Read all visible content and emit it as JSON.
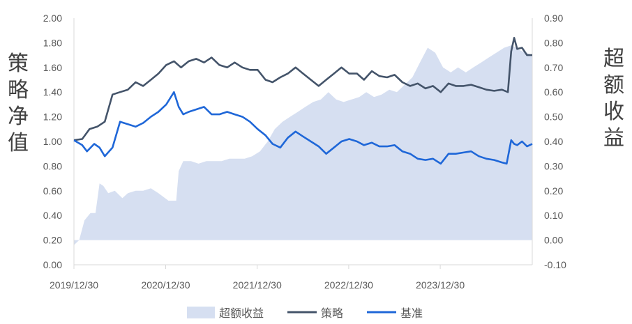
{
  "chart_data": {
    "type": "line",
    "ylabel_left": "策略净值",
    "ylabel_right": "超额收益",
    "y_left": {
      "ticks": [
        "2.00",
        "1.80",
        "1.60",
        "1.40",
        "1.20",
        "1.00",
        "0.80",
        "0.60",
        "0.40",
        "0.20",
        "0.00"
      ],
      "min": 0.0,
      "max": 2.0
    },
    "y_right": {
      "ticks": [
        "0.90",
        "0.80",
        "0.70",
        "0.60",
        "0.50",
        "0.40",
        "0.30",
        "0.20",
        "0.10",
        "0.00",
        "-0.10"
      ],
      "min": -0.1,
      "max": 0.9
    },
    "x_ticks": [
      "2019/12/30",
      "2020/12/30",
      "2021/12/30",
      "2022/12/30",
      "2023/12/30"
    ],
    "x_range": [
      "2019-12-30",
      "2024-12-31"
    ],
    "legend": [
      "超额收益",
      "策略",
      "基准"
    ],
    "legend_position": "bottom",
    "colors": {
      "excess": "#d6dff1",
      "strategy": "#44546a",
      "benchmark": "#1f67d8",
      "axis": "#d9d9d9"
    },
    "series": [
      {
        "name": "超额收益",
        "type": "area",
        "axis": "right",
        "points": [
          [
            "2019-12-30",
            -0.02
          ],
          [
            "2020-01-20",
            0.0
          ],
          [
            "2020-02-10",
            0.08
          ],
          [
            "2020-03-05",
            0.11
          ],
          [
            "2020-03-25",
            0.11
          ],
          [
            "2020-04-10",
            0.23
          ],
          [
            "2020-04-25",
            0.22
          ],
          [
            "2020-05-15",
            0.19
          ],
          [
            "2020-06-10",
            0.2
          ],
          [
            "2020-07-10",
            0.17
          ],
          [
            "2020-08-01",
            0.19
          ],
          [
            "2020-09-01",
            0.2
          ],
          [
            "2020-10-01",
            0.2
          ],
          [
            "2020-11-01",
            0.21
          ],
          [
            "2020-12-01",
            0.19
          ],
          [
            "2021-01-10",
            0.16
          ],
          [
            "2021-02-10",
            0.16
          ],
          [
            "2021-02-20",
            0.28
          ],
          [
            "2021-03-10",
            0.32
          ],
          [
            "2021-04-10",
            0.32
          ],
          [
            "2021-05-10",
            0.31
          ],
          [
            "2021-06-10",
            0.32
          ],
          [
            "2021-07-10",
            0.32
          ],
          [
            "2021-08-10",
            0.32
          ],
          [
            "2021-09-10",
            0.33
          ],
          [
            "2021-10-10",
            0.33
          ],
          [
            "2021-11-10",
            0.33
          ],
          [
            "2021-12-10",
            0.34
          ],
          [
            "2022-01-10",
            0.36
          ],
          [
            "2022-02-10",
            0.4
          ],
          [
            "2022-03-10",
            0.45
          ],
          [
            "2022-04-10",
            0.48
          ],
          [
            "2022-05-10",
            0.5
          ],
          [
            "2022-06-10",
            0.52
          ],
          [
            "2022-07-10",
            0.54
          ],
          [
            "2022-08-10",
            0.56
          ],
          [
            "2022-09-10",
            0.57
          ],
          [
            "2022-10-10",
            0.6
          ],
          [
            "2022-11-10",
            0.57
          ],
          [
            "2022-12-10",
            0.56
          ],
          [
            "2023-01-10",
            0.57
          ],
          [
            "2023-02-10",
            0.58
          ],
          [
            "2023-03-10",
            0.6
          ],
          [
            "2023-04-10",
            0.58
          ],
          [
            "2023-05-10",
            0.59
          ],
          [
            "2023-06-10",
            0.61
          ],
          [
            "2023-07-10",
            0.6
          ],
          [
            "2023-08-10",
            0.63
          ],
          [
            "2023-09-10",
            0.66
          ],
          [
            "2023-10-10",
            0.72
          ],
          [
            "2023-11-10",
            0.78
          ],
          [
            "2023-12-10",
            0.76
          ],
          [
            "2024-01-10",
            0.7
          ],
          [
            "2024-02-10",
            0.68
          ],
          [
            "2024-03-10",
            0.7
          ],
          [
            "2024-04-10",
            0.68
          ],
          [
            "2024-05-10",
            0.7
          ],
          [
            "2024-06-10",
            0.72
          ],
          [
            "2024-07-10",
            0.74
          ],
          [
            "2024-08-10",
            0.76
          ],
          [
            "2024-09-10",
            0.78
          ],
          [
            "2024-10-10",
            0.79
          ],
          [
            "2024-11-10",
            0.77
          ],
          [
            "2024-12-31",
            0.75
          ]
        ]
      },
      {
        "name": "策略",
        "type": "line",
        "axis": "left",
        "points": [
          [
            "2019-12-30",
            1.01
          ],
          [
            "2020-02-01",
            1.02
          ],
          [
            "2020-03-01",
            1.1
          ],
          [
            "2020-04-01",
            1.12
          ],
          [
            "2020-05-01",
            1.16
          ],
          [
            "2020-06-01",
            1.38
          ],
          [
            "2020-07-01",
            1.4
          ],
          [
            "2020-08-01",
            1.42
          ],
          [
            "2020-09-01",
            1.48
          ],
          [
            "2020-10-01",
            1.45
          ],
          [
            "2020-11-01",
            1.5
          ],
          [
            "2020-12-01",
            1.55
          ],
          [
            "2021-01-01",
            1.62
          ],
          [
            "2021-02-01",
            1.65
          ],
          [
            "2021-03-01",
            1.6
          ],
          [
            "2021-04-01",
            1.65
          ],
          [
            "2021-05-01",
            1.67
          ],
          [
            "2021-06-01",
            1.64
          ],
          [
            "2021-07-01",
            1.68
          ],
          [
            "2021-08-01",
            1.62
          ],
          [
            "2021-09-01",
            1.6
          ],
          [
            "2021-10-01",
            1.64
          ],
          [
            "2021-11-01",
            1.6
          ],
          [
            "2021-12-01",
            1.58
          ],
          [
            "2022-01-01",
            1.58
          ],
          [
            "2022-02-01",
            1.5
          ],
          [
            "2022-03-01",
            1.48
          ],
          [
            "2022-04-01",
            1.52
          ],
          [
            "2022-05-01",
            1.55
          ],
          [
            "2022-06-01",
            1.6
          ],
          [
            "2022-07-01",
            1.55
          ],
          [
            "2022-08-01",
            1.5
          ],
          [
            "2022-09-01",
            1.45
          ],
          [
            "2022-10-01",
            1.5
          ],
          [
            "2022-11-01",
            1.55
          ],
          [
            "2022-12-01",
            1.6
          ],
          [
            "2023-01-01",
            1.55
          ],
          [
            "2023-02-01",
            1.55
          ],
          [
            "2023-03-01",
            1.5
          ],
          [
            "2023-04-01",
            1.57
          ],
          [
            "2023-05-01",
            1.53
          ],
          [
            "2023-06-01",
            1.52
          ],
          [
            "2023-07-01",
            1.54
          ],
          [
            "2023-08-01",
            1.48
          ],
          [
            "2023-09-01",
            1.45
          ],
          [
            "2023-10-01",
            1.47
          ],
          [
            "2023-11-01",
            1.43
          ],
          [
            "2023-12-01",
            1.45
          ],
          [
            "2024-01-01",
            1.4
          ],
          [
            "2024-02-01",
            1.47
          ],
          [
            "2024-03-01",
            1.45
          ],
          [
            "2024-04-01",
            1.45
          ],
          [
            "2024-05-01",
            1.46
          ],
          [
            "2024-06-01",
            1.44
          ],
          [
            "2024-07-01",
            1.42
          ],
          [
            "2024-08-01",
            1.41
          ],
          [
            "2024-09-01",
            1.42
          ],
          [
            "2024-09-25",
            1.4
          ],
          [
            "2024-10-08",
            1.73
          ],
          [
            "2024-10-20",
            1.84
          ],
          [
            "2024-11-01",
            1.75
          ],
          [
            "2024-11-20",
            1.76
          ],
          [
            "2024-12-10",
            1.7
          ],
          [
            "2024-12-31",
            1.7
          ]
        ]
      },
      {
        "name": "基准",
        "type": "line",
        "axis": "left",
        "points": [
          [
            "2019-12-30",
            1.01
          ],
          [
            "2020-02-01",
            0.97
          ],
          [
            "2020-02-20",
            0.92
          ],
          [
            "2020-03-20",
            0.98
          ],
          [
            "2020-04-10",
            0.95
          ],
          [
            "2020-05-01",
            0.88
          ],
          [
            "2020-06-01",
            0.95
          ],
          [
            "2020-07-01",
            1.16
          ],
          [
            "2020-08-01",
            1.14
          ],
          [
            "2020-09-01",
            1.12
          ],
          [
            "2020-10-01",
            1.15
          ],
          [
            "2020-11-01",
            1.2
          ],
          [
            "2020-12-01",
            1.24
          ],
          [
            "2021-01-01",
            1.3
          ],
          [
            "2021-02-01",
            1.4
          ],
          [
            "2021-02-20",
            1.28
          ],
          [
            "2021-03-10",
            1.22
          ],
          [
            "2021-04-01",
            1.24
          ],
          [
            "2021-05-01",
            1.26
          ],
          [
            "2021-06-01",
            1.28
          ],
          [
            "2021-07-01",
            1.22
          ],
          [
            "2021-08-01",
            1.22
          ],
          [
            "2021-09-01",
            1.24
          ],
          [
            "2021-10-01",
            1.22
          ],
          [
            "2021-11-01",
            1.2
          ],
          [
            "2021-12-01",
            1.16
          ],
          [
            "2022-01-01",
            1.1
          ],
          [
            "2022-02-01",
            1.05
          ],
          [
            "2022-03-01",
            0.98
          ],
          [
            "2022-04-01",
            0.95
          ],
          [
            "2022-05-01",
            1.03
          ],
          [
            "2022-06-01",
            1.08
          ],
          [
            "2022-07-01",
            1.04
          ],
          [
            "2022-08-01",
            1.0
          ],
          [
            "2022-09-01",
            0.96
          ],
          [
            "2022-10-01",
            0.9
          ],
          [
            "2022-11-01",
            0.95
          ],
          [
            "2022-12-01",
            1.0
          ],
          [
            "2023-01-01",
            1.02
          ],
          [
            "2023-02-01",
            1.0
          ],
          [
            "2023-03-01",
            0.97
          ],
          [
            "2023-04-01",
            0.99
          ],
          [
            "2023-05-01",
            0.96
          ],
          [
            "2023-06-01",
            0.96
          ],
          [
            "2023-07-01",
            0.97
          ],
          [
            "2023-08-01",
            0.92
          ],
          [
            "2023-09-01",
            0.9
          ],
          [
            "2023-10-01",
            0.86
          ],
          [
            "2023-11-01",
            0.85
          ],
          [
            "2023-12-01",
            0.86
          ],
          [
            "2024-01-01",
            0.82
          ],
          [
            "2024-02-01",
            0.9
          ],
          [
            "2024-03-01",
            0.9
          ],
          [
            "2024-04-01",
            0.91
          ],
          [
            "2024-05-01",
            0.92
          ],
          [
            "2024-06-01",
            0.88
          ],
          [
            "2024-07-01",
            0.86
          ],
          [
            "2024-08-01",
            0.85
          ],
          [
            "2024-09-01",
            0.83
          ],
          [
            "2024-09-20",
            0.82
          ],
          [
            "2024-10-08",
            1.01
          ],
          [
            "2024-10-20",
            0.98
          ],
          [
            "2024-11-01",
            0.97
          ],
          [
            "2024-11-20",
            1.0
          ],
          [
            "2024-12-10",
            0.96
          ],
          [
            "2024-12-31",
            0.98
          ]
        ]
      }
    ]
  }
}
